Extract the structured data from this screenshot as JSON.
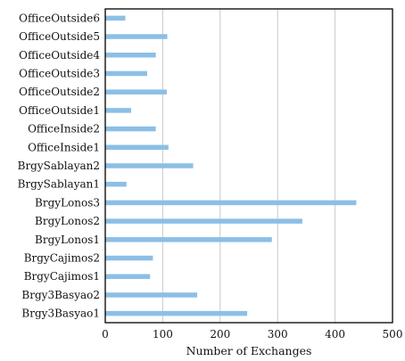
{
  "chart_data": {
    "type": "bar",
    "orientation": "horizontal",
    "title": "",
    "xlabel": "Number of Exchanges",
    "ylabel": "",
    "xlim": [
      0,
      500
    ],
    "xticks": [
      "0",
      "100",
      "200",
      "300",
      "400",
      "500"
    ],
    "grid": "vertical",
    "bar_color": "#8cbfe6",
    "categories": [
      "OfficeOutside6",
      "OfficeOutside5",
      "OfficeOutside4",
      "OfficeOutside3",
      "OfficeOutside2",
      "OfficeOutside1",
      "OfficeInside2",
      "OfficeInside1",
      "BrgySablayan2",
      "BrgySablayan1",
      "BrgyLonos3",
      "BrgyLonos2",
      "BrgyLonos1",
      "BrgyCajimos2",
      "BrgyCajimos1",
      "Brgy3Basyao2",
      "Brgy3Basyao1"
    ],
    "values": [
      35,
      108,
      88,
      73,
      107,
      45,
      88,
      110,
      153,
      37,
      437,
      343,
      290,
      83,
      78,
      160,
      247
    ]
  }
}
